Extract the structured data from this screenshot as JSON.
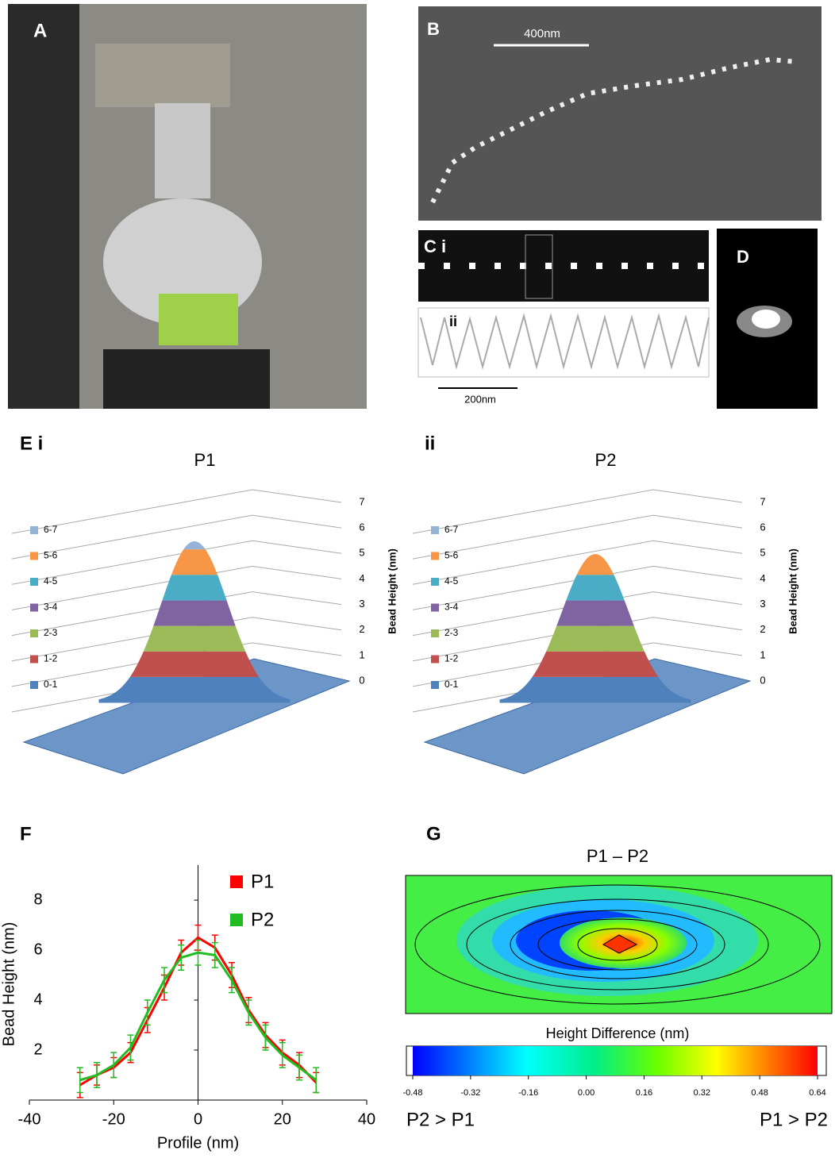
{
  "panel_labels": {
    "a": "A",
    "b": "B",
    "c": "C i",
    "c2": "ii",
    "d": "D",
    "e": "E i",
    "e2": "ii",
    "f": "F",
    "g": "G"
  },
  "scale_bars": {
    "b": "400nm",
    "c": "200nm"
  },
  "chart_data": [
    {
      "type": "surface",
      "title": "P1",
      "zlabel": "Bead Height (nm)",
      "zlim": [
        0,
        7
      ],
      "zticks": [
        0,
        1,
        2,
        3,
        4,
        5,
        6,
        7
      ],
      "peak": 6.3,
      "series": [
        {
          "name": "0-1",
          "color": "#4f81bd"
        },
        {
          "name": "1-2",
          "color": "#c0504d"
        },
        {
          "name": "2-3",
          "color": "#9bbb59"
        },
        {
          "name": "3-4",
          "color": "#8064a2"
        },
        {
          "name": "4-5",
          "color": "#4bacc6"
        },
        {
          "name": "5-6",
          "color": "#f79646"
        },
        {
          "name": "6-7",
          "color": "#95b3d7"
        }
      ]
    },
    {
      "type": "surface",
      "title": "P2",
      "zlabel": "Bead Height (nm)",
      "zlim": [
        0,
        7
      ],
      "zticks": [
        0,
        1,
        2,
        3,
        4,
        5,
        6,
        7
      ],
      "peak": 5.8,
      "series": [
        {
          "name": "0-1",
          "color": "#4f81bd"
        },
        {
          "name": "1-2",
          "color": "#c0504d"
        },
        {
          "name": "2-3",
          "color": "#9bbb59"
        },
        {
          "name": "3-4",
          "color": "#8064a2"
        },
        {
          "name": "4-5",
          "color": "#4bacc6"
        },
        {
          "name": "5-6",
          "color": "#f79646"
        },
        {
          "name": "6-7",
          "color": "#95b3d7"
        }
      ]
    },
    {
      "type": "line",
      "xlabel": "Profile (nm)",
      "ylabel": "Bead Height (nm)",
      "xlim": [
        -40,
        40
      ],
      "xticks": [
        -40,
        -20,
        0,
        20,
        40
      ],
      "ylim": [
        0,
        9.4
      ],
      "yticks": [
        2,
        4,
        6,
        8
      ],
      "x": [
        -28,
        -24,
        -20,
        -16,
        -12,
        -8,
        -4,
        0,
        4,
        8,
        12,
        16,
        20,
        24,
        28
      ],
      "series": [
        {
          "name": "P1",
          "color": "#ff0000",
          "values": [
            0.6,
            1.0,
            1.3,
            1.9,
            3.2,
            4.5,
            5.9,
            6.5,
            6.1,
            5.0,
            3.6,
            2.6,
            1.9,
            1.4,
            0.7
          ],
          "errors": [
            0.5,
            0.4,
            0.4,
            0.4,
            0.5,
            0.5,
            0.5,
            0.5,
            0.5,
            0.5,
            0.5,
            0.5,
            0.5,
            0.5,
            0.4
          ]
        },
        {
          "name": "P2",
          "color": "#22bb22",
          "values": [
            0.8,
            1.0,
            1.4,
            2.1,
            3.5,
            4.8,
            5.7,
            5.9,
            5.8,
            4.8,
            3.5,
            2.5,
            1.8,
            1.3,
            0.8
          ],
          "errors": [
            0.5,
            0.5,
            0.5,
            0.5,
            0.5,
            0.5,
            0.5,
            0.5,
            0.5,
            0.5,
            0.5,
            0.5,
            0.5,
            0.5,
            0.5
          ]
        }
      ]
    },
    {
      "type": "heatmap",
      "title": "P1 – P2",
      "colorbar_label": "Height Difference (nm)",
      "clim": [
        -0.48,
        0.64
      ],
      "cticks": [
        -0.48,
        -0.32,
        -0.16,
        {
          "value": 0,
          "label": "0.00"
        },
        0.16,
        0.32,
        0.48,
        0.64
      ],
      "annotations": [
        "P2 > P1",
        "P1 > P2"
      ]
    }
  ]
}
